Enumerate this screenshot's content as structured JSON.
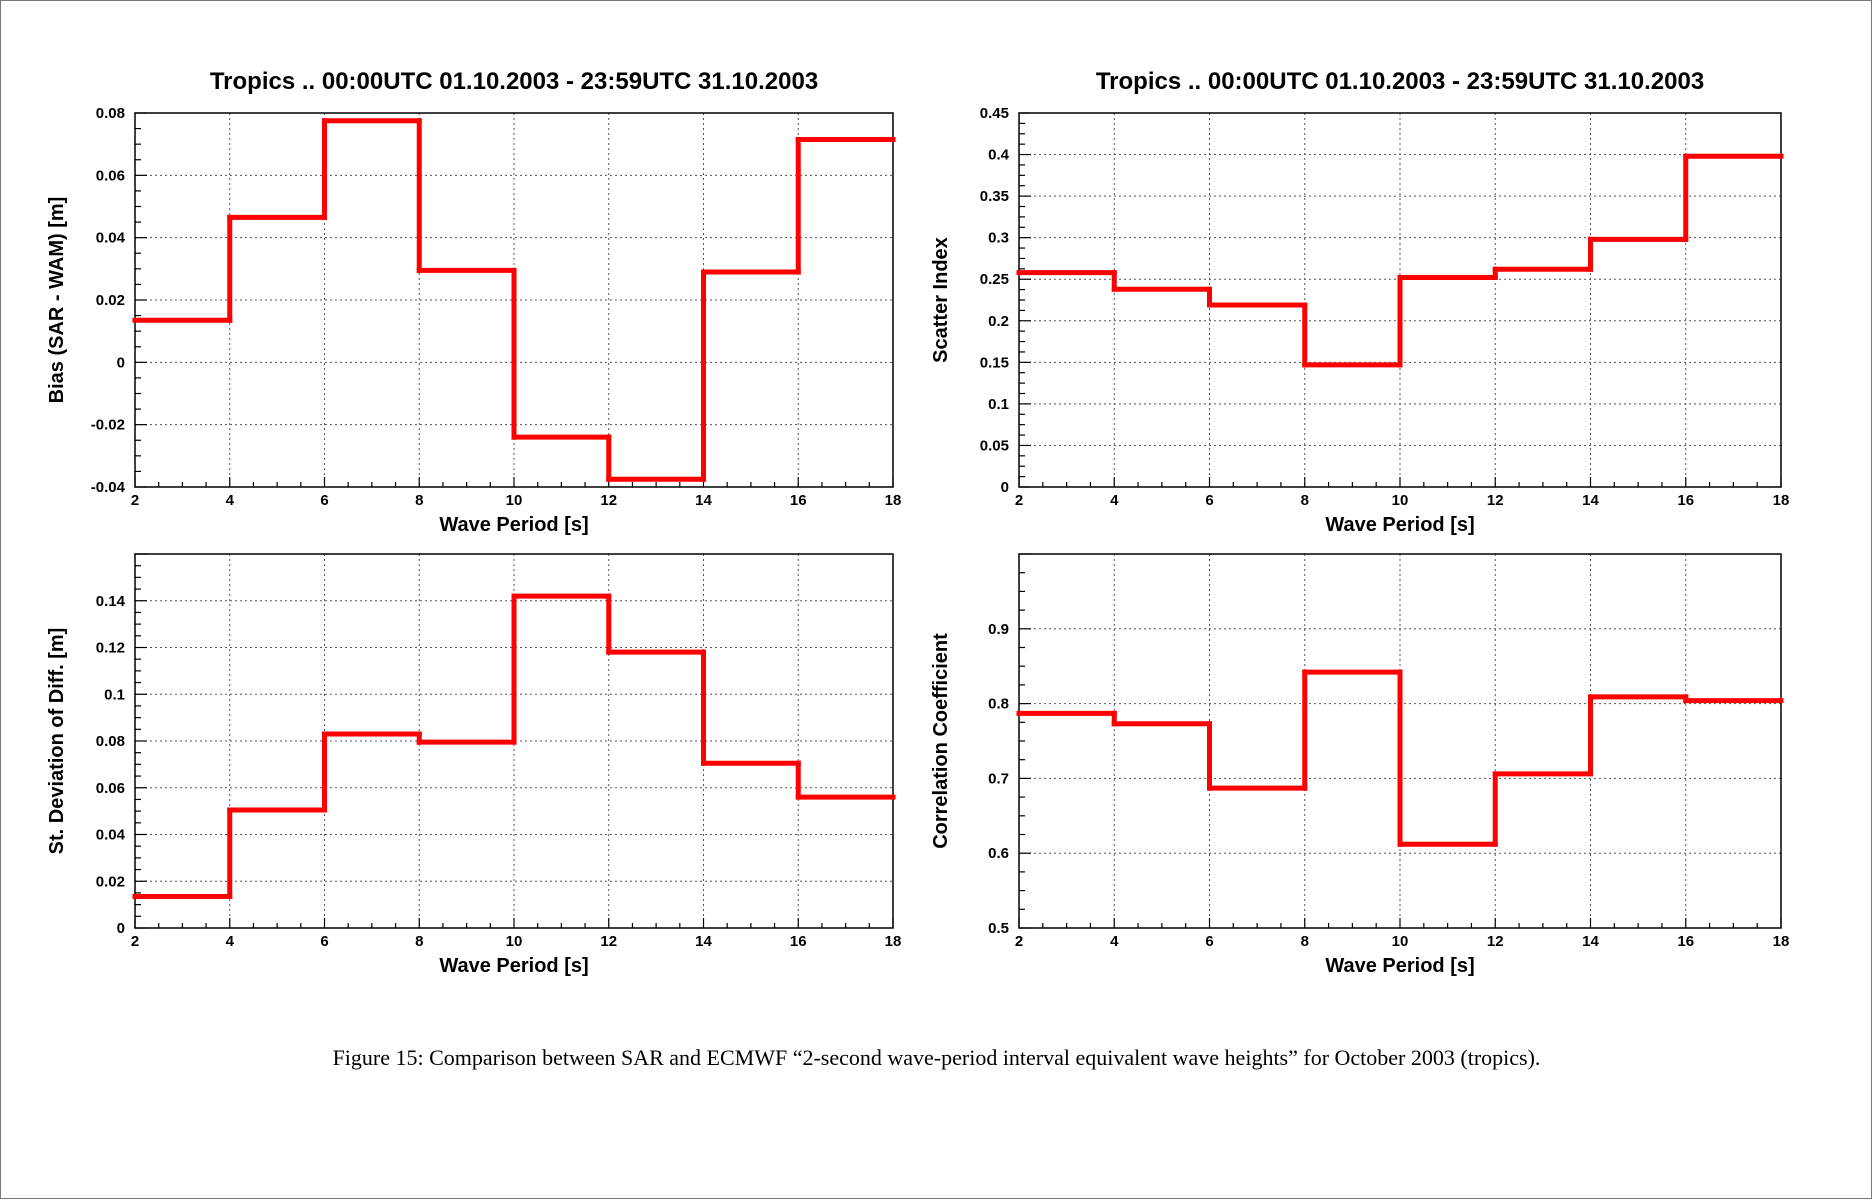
{
  "caption": "Figure 15: Comparison between SAR and ECMWF “2-second wave-period interval equivalent wave heights” for October 2003 (tropics).",
  "colors": {
    "line": "#ff0000",
    "grid": "#555555",
    "axis": "#000000"
  },
  "chart_data": [
    {
      "type": "line",
      "step": true,
      "title": "Tropics .. 00:00UTC 01.10.2003 - 23:59UTC 31.10.2003",
      "xlabel": "Wave Period   [s]",
      "ylabel": "Bias (SAR - WAM)   [m]",
      "xlim": [
        2,
        18
      ],
      "ylim": [
        -0.04,
        0.08
      ],
      "xticks": [
        "2",
        "4",
        "6",
        "8",
        "10",
        "12",
        "14",
        "16",
        "18"
      ],
      "yticks": [
        "-0.04",
        "-0.02",
        "0",
        "0.02",
        "0.04",
        "0.06",
        "0.08"
      ],
      "grid": true,
      "bin_edges": [
        2,
        4,
        6,
        8,
        10,
        12,
        14,
        16,
        18
      ],
      "values": [
        0.0135,
        0.0465,
        0.0775,
        0.0295,
        -0.024,
        -0.0375,
        0.029,
        0.0715
      ]
    },
    {
      "type": "line",
      "step": true,
      "title": "Tropics .. 00:00UTC 01.10.2003 - 23:59UTC 31.10.2003",
      "xlabel": "Wave Period   [s]",
      "ylabel": "Scatter Index",
      "xlim": [
        2,
        18
      ],
      "ylim": [
        0,
        0.45
      ],
      "xticks": [
        "2",
        "4",
        "6",
        "8",
        "10",
        "12",
        "14",
        "16",
        "18"
      ],
      "yticks": [
        "0",
        "0.05",
        "0.1",
        "0.15",
        "0.2",
        "0.25",
        "0.3",
        "0.35",
        "0.4",
        "0.45"
      ],
      "grid": true,
      "bin_edges": [
        2,
        4,
        6,
        8,
        10,
        12,
        14,
        16,
        18
      ],
      "values": [
        0.258,
        0.238,
        0.219,
        0.147,
        0.252,
        0.262,
        0.298,
        0.398
      ]
    },
    {
      "type": "line",
      "step": true,
      "title": "",
      "xlabel": "Wave Period   [s]",
      "ylabel": "St. Deviation of Diff.  [m]",
      "xlim": [
        2,
        18
      ],
      "ylim": [
        0,
        0.16
      ],
      "xticks": [
        "2",
        "4",
        "6",
        "8",
        "10",
        "12",
        "14",
        "16",
        "18"
      ],
      "yticks": [
        "0",
        "0.02",
        "0.04",
        "0.06",
        "0.08",
        "0.1",
        "0.12",
        "0.14"
      ],
      "grid": true,
      "bin_edges": [
        2,
        4,
        6,
        8,
        10,
        12,
        14,
        16,
        18
      ],
      "values": [
        0.0135,
        0.0505,
        0.083,
        0.0795,
        0.142,
        0.118,
        0.0705,
        0.056
      ]
    },
    {
      "type": "line",
      "step": true,
      "title": "",
      "xlabel": "Wave Period   [s]",
      "ylabel": "Correlation  Coefficient",
      "xlim": [
        2,
        18
      ],
      "ylim": [
        0.5,
        1.0
      ],
      "xticks": [
        "2",
        "4",
        "6",
        "8",
        "10",
        "12",
        "14",
        "16",
        "18"
      ],
      "yticks": [
        "0.5",
        "0.6",
        "0.7",
        "0.8",
        "0.9"
      ],
      "grid": true,
      "bin_edges": [
        2,
        4,
        6,
        8,
        10,
        12,
        14,
        16,
        18
      ],
      "values": [
        0.787,
        0.773,
        0.687,
        0.842,
        0.612,
        0.706,
        0.809,
        0.804
      ]
    }
  ]
}
